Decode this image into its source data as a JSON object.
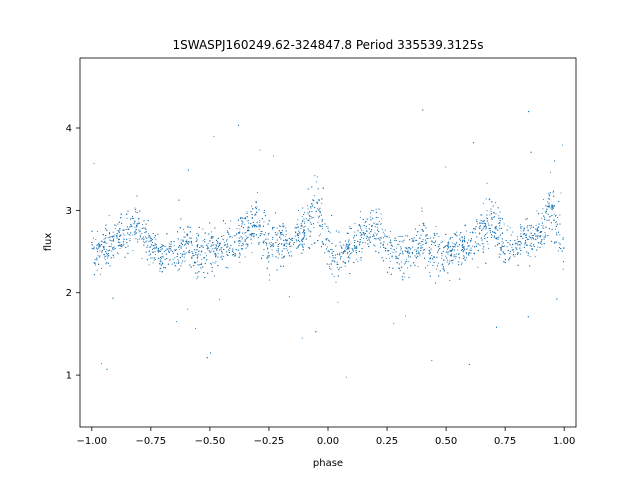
{
  "chart_data": {
    "type": "scatter",
    "title": "1SWASPJ160249.62-324847.8 Period 335539.3125s",
    "xlabel": "phase",
    "ylabel": "flux",
    "xlim": [
      -1.05,
      1.05
    ],
    "ylim": [
      0.37,
      4.85
    ],
    "xticks": [
      -1.0,
      -0.75,
      -0.5,
      -0.25,
      0.0,
      0.25,
      0.5,
      0.75,
      1.0
    ],
    "xtick_labels": [
      "−1.00",
      "−0.75",
      "−0.50",
      "−0.25",
      "0.00",
      "0.25",
      "0.50",
      "0.75",
      "1.00"
    ],
    "yticks": [
      1,
      2,
      3,
      4
    ],
    "ytick_labels": [
      "1",
      "2",
      "3",
      "4"
    ],
    "grid": false,
    "color": "#1f77b4",
    "series": [
      {
        "x": [
          -1.0,
          -0.95,
          -0.9,
          -0.85,
          -0.8,
          -0.75,
          -0.7,
          -0.65,
          -0.6,
          -0.55,
          -0.5,
          -0.45,
          -0.4,
          -0.35,
          -0.3,
          -0.25,
          -0.2,
          -0.15,
          -0.1,
          -0.05,
          0.0,
          0.05,
          0.1,
          0.15,
          0.2,
          0.25,
          0.3,
          0.35,
          0.4,
          0.45,
          0.5,
          0.55,
          0.6,
          0.65,
          0.7,
          0.75,
          0.8,
          0.85,
          0.9,
          0.95,
          1.0
        ],
        "y": [
          2.5,
          2.55,
          2.65,
          2.75,
          2.8,
          2.55,
          2.45,
          2.5,
          2.65,
          2.45,
          2.5,
          2.55,
          2.6,
          2.7,
          2.85,
          2.55,
          2.6,
          2.65,
          2.75,
          3.1,
          2.5,
          2.45,
          2.55,
          2.7,
          2.8,
          2.6,
          2.45,
          2.5,
          2.65,
          2.45,
          2.5,
          2.55,
          2.6,
          2.75,
          2.9,
          2.55,
          2.6,
          2.65,
          2.75,
          3.1,
          2.5
        ],
        "spread": [
          0.35,
          0.4,
          0.3,
          0.3,
          0.35,
          0.3,
          0.3,
          0.3,
          0.35,
          0.4,
          0.35,
          0.3,
          0.3,
          0.35,
          0.35,
          0.4,
          0.35,
          0.3,
          0.35,
          0.45,
          0.45,
          0.35,
          0.3,
          0.3,
          0.35,
          0.35,
          0.3,
          0.3,
          0.35,
          0.4,
          0.35,
          0.3,
          0.3,
          0.35,
          0.35,
          0.4,
          0.35,
          0.3,
          0.35,
          0.45,
          0.45
        ]
      }
    ]
  }
}
